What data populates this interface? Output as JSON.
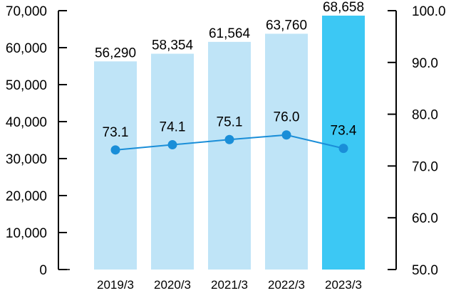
{
  "chart_data": {
    "type": "bar+line",
    "categories": [
      "2019/3",
      "2020/3",
      "2021/3",
      "2022/3",
      "2023/3"
    ],
    "series": [
      {
        "axis": "left",
        "type": "bar",
        "values": [
          56290,
          58354,
          61564,
          63760,
          68658
        ],
        "labels": [
          "56,290",
          "58,354",
          "61,564",
          "63,760",
          "68,658"
        ],
        "color": "#bfe4f7",
        "highlight_color": "#3cc8f4",
        "highlight_index": 4
      },
      {
        "axis": "right",
        "type": "line",
        "values": [
          73.1,
          74.1,
          75.1,
          76.0,
          73.4
        ],
        "labels": [
          "73.1",
          "74.1",
          "75.1",
          "76.0",
          "73.4"
        ],
        "color": "#1a8ed8"
      }
    ],
    "y_left": {
      "ylim": [
        0,
        70000
      ],
      "ticks": [
        0,
        10000,
        20000,
        30000,
        40000,
        50000,
        60000,
        70000
      ],
      "tick_labels": [
        "0",
        "10,000",
        "20,000",
        "30,000",
        "40,000",
        "50,000",
        "60,000",
        "70,000"
      ]
    },
    "y_right": {
      "ylim": [
        50.0,
        100.0
      ],
      "ticks": [
        50,
        60,
        70,
        80,
        90,
        100
      ],
      "tick_labels": [
        "50.0",
        "60.0",
        "70.0",
        "80.0",
        "90.0",
        "100.0"
      ]
    },
    "grid": false,
    "legend": "none",
    "title": "",
    "xlabel": "",
    "ylabel": ""
  }
}
